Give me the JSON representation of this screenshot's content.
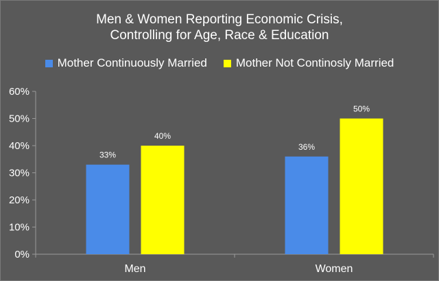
{
  "chart_data": {
    "type": "bar",
    "title_lines": [
      "Men & Women Reporting Economic Crisis,",
      "Controlling for Age, Race & Education"
    ],
    "categories": [
      "Men",
      "Women"
    ],
    "series": [
      {
        "name": "Mother Continuously Married",
        "values": [
          33,
          36
        ],
        "labels": [
          "33%",
          "36%"
        ],
        "color": "#4a8be8"
      },
      {
        "name": "Mother Not Continosly Married",
        "values": [
          40,
          50
        ],
        "labels": [
          "40%",
          "50%"
        ],
        "color": "#ffff00"
      }
    ],
    "ylim": [
      0,
      60
    ],
    "yticks": [
      0,
      10,
      20,
      30,
      40,
      50,
      60
    ],
    "ytick_labels": [
      "0%",
      "10%",
      "20%",
      "30%",
      "40%",
      "50%",
      "60%"
    ],
    "grid": false,
    "legend_position": "top",
    "colors": {
      "background": "#595959",
      "text": "#ffffff",
      "axis": "#9a9a9a"
    }
  }
}
